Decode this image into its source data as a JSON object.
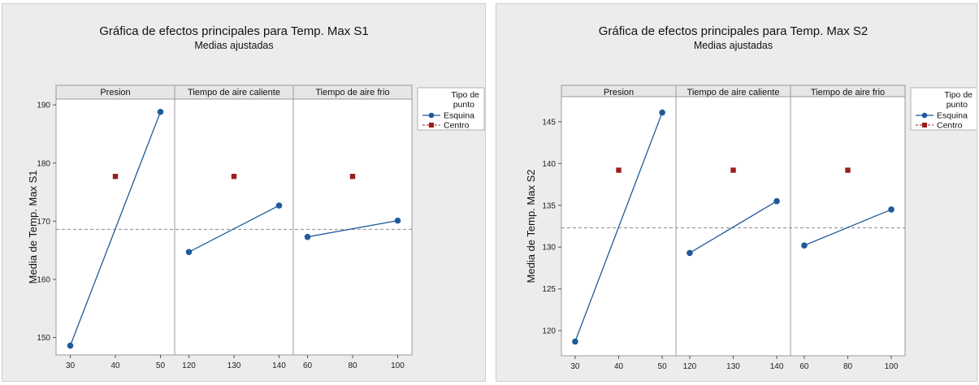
{
  "chart_data": [
    {
      "type": "line",
      "title": "Gráfica de efectos principales para Temp. Max S1",
      "subtitle": "Medias ajustadas",
      "ylabel": "Media de Temp. Max S1",
      "ylim": [
        147,
        191
      ],
      "yticks": [
        "150",
        "160",
        "170",
        "180",
        "190"
      ],
      "ytick_values": [
        150,
        160,
        170,
        180,
        190
      ],
      "overall_mean": 168.6,
      "legend": {
        "title_line1": "Tipo de",
        "title_line2": "punto",
        "series": [
          "Esquina",
          "Centro"
        ],
        "placement": "right"
      },
      "panels": [
        {
          "label": "Presion",
          "x": [
            30,
            40,
            50
          ],
          "xticks": [
            "30",
            "40",
            "50"
          ],
          "esquina": [
            148.6,
            188.8
          ],
          "centro": 177.7
        },
        {
          "label": "Tiempo de aire caliente",
          "x": [
            120,
            130,
            140
          ],
          "xticks": [
            "120",
            "130",
            "140"
          ],
          "esquina": [
            164.7,
            172.7
          ],
          "centro": 177.7
        },
        {
          "label": "Tiempo de aire frio",
          "x": [
            60,
            80,
            100
          ],
          "xticks": [
            "60",
            "80",
            "100"
          ],
          "esquina": [
            167.3,
            170.1
          ],
          "centro": 177.7
        }
      ]
    },
    {
      "type": "line",
      "title": "Gráfica de efectos principales para Temp. Max S2",
      "subtitle": "Medias ajustadas",
      "ylabel": "Media de Temp. Max S2",
      "ylim": [
        117,
        148
      ],
      "yticks": [
        "120",
        "125",
        "130",
        "135",
        "140",
        "145"
      ],
      "ytick_values": [
        120,
        125,
        130,
        135,
        140,
        145
      ],
      "overall_mean": 132.3,
      "legend": {
        "title_line1": "Tipo de",
        "title_line2": "punto",
        "series": [
          "Esquina",
          "Centro"
        ],
        "placement": "right"
      },
      "panels": [
        {
          "label": "Presion",
          "x": [
            30,
            40,
            50
          ],
          "xticks": [
            "30",
            "40",
            "50"
          ],
          "esquina": [
            118.7,
            146.1
          ],
          "centro": 139.2
        },
        {
          "label": "Tiempo de aire caliente",
          "x": [
            120,
            130,
            140
          ],
          "xticks": [
            "120",
            "130",
            "140"
          ],
          "esquina": [
            129.3,
            135.5
          ],
          "centro": 139.2
        },
        {
          "label": "Tiempo de aire frio",
          "x": [
            60,
            80,
            100
          ],
          "xticks": [
            "60",
            "80",
            "100"
          ],
          "esquina": [
            130.2,
            134.5
          ],
          "centro": 139.2
        }
      ]
    }
  ],
  "colors": {
    "esquina": "#1f5a99",
    "centro": "#9b1c1c",
    "mean_line": "#8c8c8c",
    "plot_bg": "#ffffff",
    "frame_bg": "#ececec"
  }
}
